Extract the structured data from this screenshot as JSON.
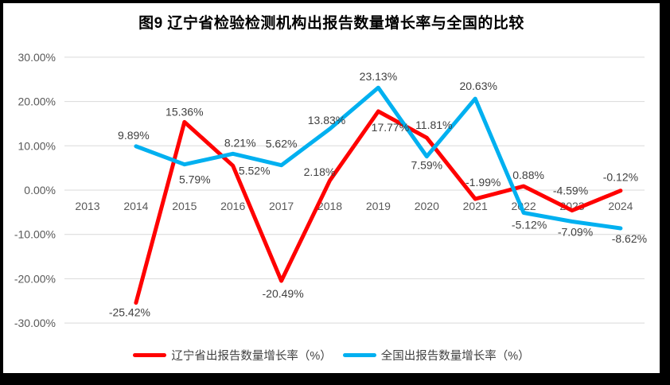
{
  "title": "图9  辽宁省检验检测机构出报告数量增长率与全国的比较",
  "chart_data": {
    "type": "line",
    "x": [
      "2013",
      "2014",
      "2015",
      "2016",
      "2017",
      "2018",
      "2019",
      "2020",
      "2021",
      "2022",
      "2023",
      "2024"
    ],
    "y_ticks": [
      "30.00%",
      "20.00%",
      "10.00%",
      "0.00%",
      "-10.00%",
      "-20.00%",
      "-30.00%"
    ],
    "ylim": [
      -30,
      30
    ],
    "grid": true,
    "legend_position": "bottom",
    "series": [
      {
        "name": "辽宁省出报告数量增长率（%）",
        "color": "#FF0000",
        "values": [
          null,
          -25.42,
          15.36,
          5.52,
          -20.49,
          2.18,
          17.77,
          11.81,
          -1.99,
          0.88,
          -4.59,
          -0.12
        ],
        "data_labels": [
          null,
          "-25.42%",
          "15.36%",
          "5.52%",
          "-20.49%",
          "2.18%",
          "17.77%",
          "11.81%",
          "-1.99%",
          "0.88%",
          "-4.59%",
          "-0.12%"
        ],
        "label_offsets": [
          null,
          [
            -8,
            17
          ],
          [
            0,
            -8
          ],
          [
            27,
            11
          ],
          [
            2,
            21
          ],
          [
            -13,
            -6
          ],
          [
            15,
            25
          ],
          [
            9,
            -11
          ],
          [
            10,
            -16
          ],
          [
            6,
            -9
          ],
          [
            -2,
            -20
          ],
          [
            0,
            -12
          ]
        ]
      },
      {
        "name": "全国出报告数量增长率（%）",
        "color": "#00B0F0",
        "values": [
          null,
          9.89,
          5.79,
          8.21,
          5.62,
          13.83,
          23.13,
          7.59,
          20.63,
          -5.12,
          -7.09,
          -8.62
        ],
        "data_labels": [
          null,
          "9.89%",
          "5.79%",
          "8.21%",
          "5.62%",
          "13.83%",
          "23.13%",
          "7.59%",
          "20.63%",
          "-5.12%",
          "-7.09%",
          "-8.62%"
        ],
        "label_offsets": [
          null,
          [
            -3,
            -9
          ],
          [
            13,
            24
          ],
          [
            9,
            -9
          ],
          [
            0,
            -22
          ],
          [
            -4,
            -6
          ],
          [
            0,
            -9
          ],
          [
            0,
            16
          ],
          [
            4,
            -11
          ],
          [
            7,
            20
          ],
          [
            4,
            18
          ],
          [
            11,
            18
          ]
        ]
      }
    ]
  },
  "colors": {
    "frame": "#000000",
    "background": "#FFFFFF",
    "gridline": "#D9D9D9",
    "axis_text": "#595959",
    "data_label_text": "#404040",
    "title_text": "#000000",
    "legend_text": "#404040"
  }
}
